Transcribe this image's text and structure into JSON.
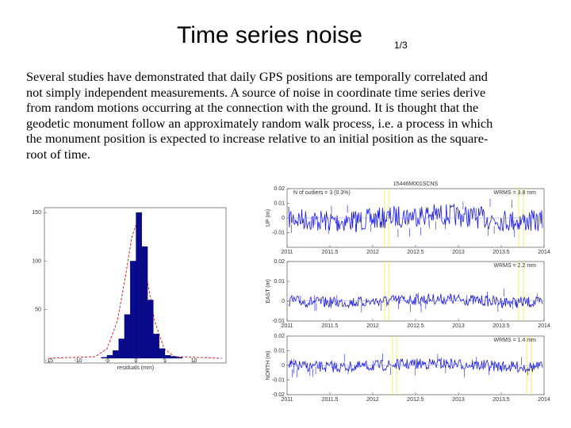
{
  "title": "Time series noise",
  "page_number": "1/3",
  "paragraph_lines": [
    "Several studies have demonstrated that daily GPS positions are temporally correlated and",
    "not simply independent measurements. A source of noise in coordinate time series derive",
    "from random motions occurring at the connection with the ground. It is thought that the",
    "geodetic monument follow an approximately random walk process, i.e. a process in which",
    "the monument position is expected to increase relative to an initial position as the square-",
    "root of time."
  ],
  "histogram": {
    "type": "histogram",
    "x_label": "residuals (mm)",
    "bins": [
      -6,
      -5,
      -4,
      -3,
      -2,
      -1,
      0,
      1,
      2,
      3,
      4,
      5,
      6,
      7,
      8
    ],
    "counts": [
      1,
      3,
      8,
      20,
      45,
      100,
      150,
      115,
      60,
      25,
      10,
      3,
      2,
      1
    ],
    "color": "#0a0a8c",
    "xlim": [
      -15,
      15
    ],
    "xticks": [
      -15,
      -10,
      -5,
      0,
      5,
      10
    ],
    "ylim": [
      0,
      155
    ],
    "yticks": [
      50,
      100,
      150
    ]
  },
  "time_series": {
    "station": "15446M001SCNS",
    "outliers": "N of outliers = 3 (0.3%)",
    "xlim": [
      2011,
      2014
    ],
    "xticks": [
      2011,
      2011.5,
      2012,
      2012.5,
      2013,
      2013.5,
      2014
    ],
    "panels": [
      {
        "label": "UP (m)",
        "wrms": "WRMS = 3.8 mm",
        "ylim": [
          -0.02,
          0.02
        ],
        "yticks": [
          0.02,
          0.01,
          0,
          -0.01
        ]
      },
      {
        "label": "EAST (m)",
        "wrms": "WRMS = 2.2 mm",
        "ylim": [
          -0.01,
          0.02
        ],
        "yticks": [
          0.02,
          0.01,
          0,
          -0.01
        ]
      },
      {
        "label": "NORTH (m)",
        "wrms": "WRMS = 1.4 mm",
        "ylim": [
          -0.02,
          0.02
        ],
        "yticks": [
          0.02,
          0.01,
          0,
          -0.01,
          -0.02
        ]
      }
    ]
  }
}
